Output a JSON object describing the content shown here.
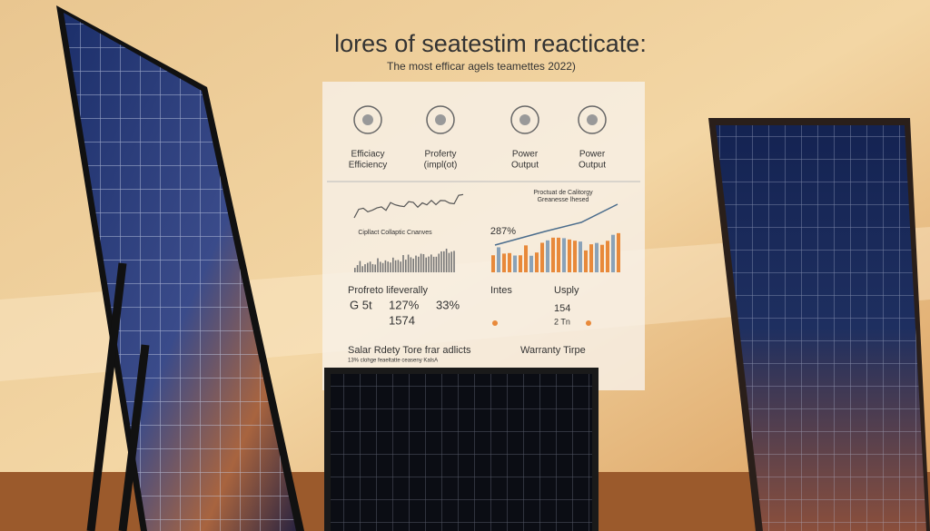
{
  "header": {
    "title": "lores of seatestim reacticate:",
    "subtitle": "The most efficar agels teamettes 2022)"
  },
  "icons": [
    {
      "lines": [
        "Efficiacy",
        "Efficiency"
      ]
    },
    {
      "lines": [
        "Proferty",
        "(impl(ot)"
      ]
    },
    {
      "lines": [
        "Power",
        "Output"
      ]
    },
    {
      "lines": [
        "Power",
        "Output"
      ]
    }
  ],
  "charts": {
    "left_caption": "Cipllact Collaptic Cnanves",
    "right_caption": [
      "Proctuat de Calitorgy",
      "Greanesse lhesed"
    ],
    "right_value": "287%"
  },
  "stats": {
    "left": {
      "title": "Profreto lifeverally",
      "rows": [
        [
          "G 5t",
          "127%",
          "33%"
        ],
        [
          "",
          "1574",
          ""
        ]
      ]
    },
    "right": {
      "col1": "Intes",
      "col2": "Usply",
      "values": [
        "154",
        "2 Tn"
      ]
    }
  },
  "footer": {
    "left": "Salar Rdety Tore frar adlicts",
    "left_note": "13% clohge feaeltatte ceaseny KalsA",
    "right": "Warranty Tirpe"
  }
}
